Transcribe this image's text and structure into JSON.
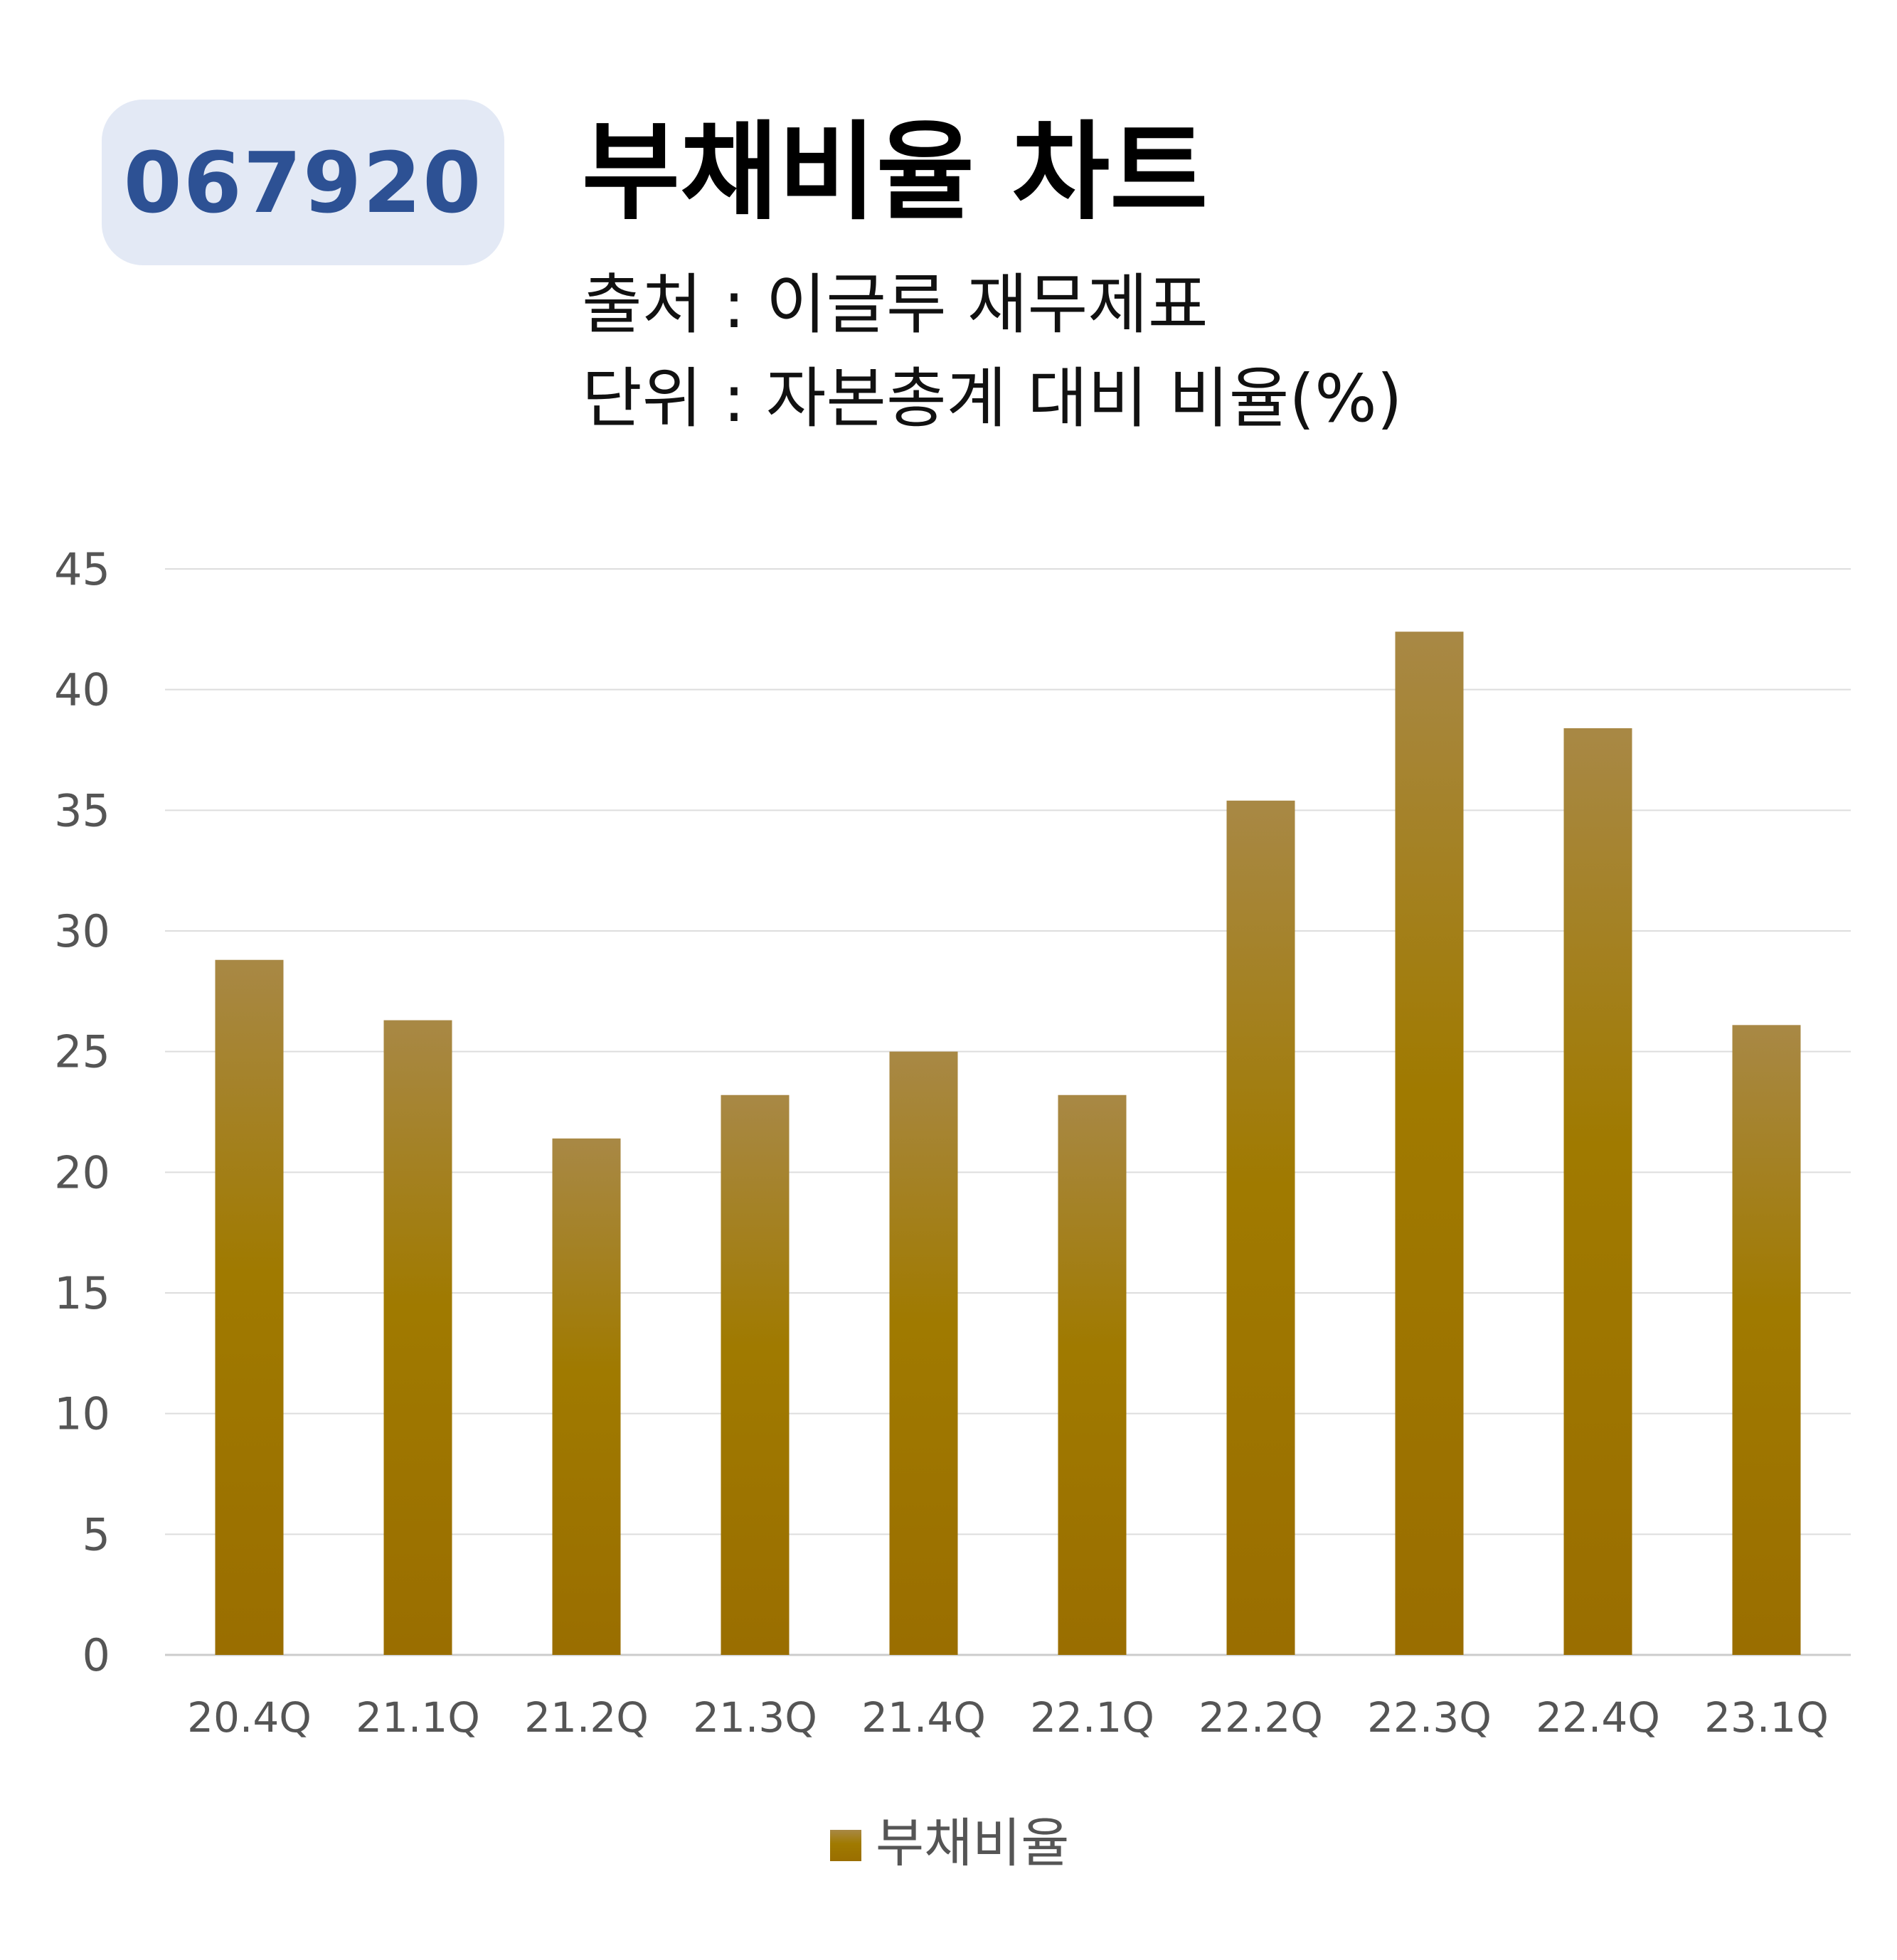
{
  "header": {
    "code": "067920",
    "title": "부채비율 차트",
    "source": "출처 : 이글루 재무제표",
    "unit": "단위 : 자본총계 대비 비율(%)"
  },
  "colors": {
    "bar_top": "#a88845",
    "bar_bottom": "#9a6e00",
    "badge_bg": "#e3e9f5",
    "badge_text": "#2d5194",
    "grid": "#dddddd"
  },
  "chart_data": {
    "type": "bar",
    "categories": [
      "20.4Q",
      "21.1Q",
      "21.2Q",
      "21.3Q",
      "21.4Q",
      "22.1Q",
      "22.2Q",
      "22.3Q",
      "22.4Q",
      "23.1Q"
    ],
    "series": [
      {
        "name": "부채비율",
        "values": [
          28.8,
          26.3,
          21.4,
          23.2,
          25.0,
          23.2,
          35.4,
          42.4,
          38.4,
          26.1
        ]
      }
    ],
    "ylim": [
      0,
      45
    ],
    "yticks": [
      0,
      5,
      10,
      15,
      20,
      25,
      30,
      35,
      40,
      45
    ],
    "grid": true,
    "legend": "bottom-center",
    "xlabel": "",
    "ylabel": ""
  }
}
